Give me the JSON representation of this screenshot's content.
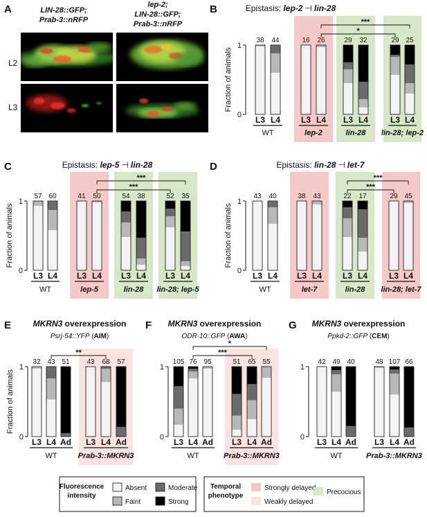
{
  "colors": {
    "absent": "#f3f3f3",
    "faint": "#b8b8b8",
    "moderate": "#6b6b6b",
    "strong": "#000000",
    "strongly_delayed": "#f6c9c9",
    "weakly_delayed": "#fbe3e1",
    "precocious": "#d6e8c8",
    "bar_outline": "#222222"
  },
  "panel_a": {
    "letter": "A",
    "col1_title": [
      "LIN-28::GFP;",
      "Prab-3::nRFP"
    ],
    "col2_title": [
      "lep-2;",
      "LIN-28::GFP;",
      "Prab-3::nRFP"
    ],
    "row_labels": [
      "L2",
      "L3"
    ]
  },
  "legend": {
    "fluor_title": [
      "Fluorescence",
      "intensity"
    ],
    "fluor_items": [
      "Absent",
      "Moderate",
      "Faint",
      "Strong"
    ],
    "temporal_title": [
      "Temporal",
      "phenotype"
    ],
    "temporal_items": [
      "Strongly delayed",
      "Precocious",
      "Weakly delayed"
    ]
  },
  "chart_data": [
    {
      "type": "bar",
      "panel": "B",
      "title_parts": [
        "Epistasis: ",
        "lep-2",
        "lin-28"
      ],
      "ylabel": "Fraction of animals",
      "ylim": [
        0,
        1
      ],
      "yticks": [
        "0",
        "1"
      ],
      "categories": [
        "L3",
        "L4",
        "L3",
        "L4",
        "L3",
        "L4",
        "L3",
        "L4"
      ],
      "n": [
        38,
        44,
        16,
        26,
        29,
        32,
        29,
        25
      ],
      "groups": [
        {
          "label": "WT",
          "shade": "none"
        },
        {
          "label": "lep-2",
          "shade": "strongly_delayed"
        },
        {
          "label": "lin-28",
          "shade": "precocious"
        },
        {
          "label": "lin-28; lep-2",
          "shade": "precocious"
        }
      ],
      "series": [
        {
          "name": "Absent",
          "values": [
            0.98,
            0.6,
            1.0,
            0.97,
            0.45,
            0.1,
            0.57,
            0.3
          ]
        },
        {
          "name": "Faint",
          "values": [
            0.02,
            0.28,
            0.0,
            0.03,
            0.2,
            0.12,
            0.26,
            0.15
          ]
        },
        {
          "name": "Moderate",
          "values": [
            0,
            0.12,
            0,
            0,
            0.1,
            0.25,
            0.03,
            0.27
          ]
        },
        {
          "name": "Strong",
          "values": [
            0,
            0,
            0,
            0,
            0.25,
            0.53,
            0.14,
            0.28
          ]
        }
      ],
      "significance": [
        {
          "from": 3,
          "to": 7,
          "label": "***"
        },
        {
          "from": 3,
          "to": 6,
          "label": "*"
        }
      ]
    },
    {
      "type": "bar",
      "panel": "C",
      "title_parts": [
        "Epistasis: ",
        "lep-5",
        "lin-28"
      ],
      "ylabel": "Fraction of animals",
      "ylim": [
        0,
        1
      ],
      "yticks": [
        "0",
        "1"
      ],
      "categories": [
        "L3",
        "L4",
        "L3",
        "L4",
        "L3",
        "L4",
        "L3",
        "L4"
      ],
      "n": [
        57,
        60,
        41,
        50,
        54,
        38,
        52,
        35
      ],
      "groups": [
        {
          "label": "WT",
          "shade": "none"
        },
        {
          "label": "lep-5",
          "shade": "strongly_delayed"
        },
        {
          "label": "lin-28",
          "shade": "precocious"
        },
        {
          "label": "lin-28; lep-5",
          "shade": "precocious"
        }
      ],
      "series": [
        {
          "name": "Absent",
          "values": [
            0.93,
            0.58,
            1.0,
            0.98,
            0.48,
            0.08,
            0.62,
            0.06
          ]
        },
        {
          "name": "Faint",
          "values": [
            0.07,
            0.29,
            0.0,
            0.02,
            0.21,
            0.09,
            0.16,
            0.07
          ]
        },
        {
          "name": "Moderate",
          "values": [
            0,
            0.13,
            0,
            0,
            0.16,
            0.3,
            0.11,
            0.43
          ]
        },
        {
          "name": "Strong",
          "values": [
            0,
            0,
            0,
            0,
            0.15,
            0.53,
            0.11,
            0.44
          ]
        }
      ],
      "significance": [
        {
          "from": 3,
          "to": 7,
          "label": "***"
        },
        {
          "from": 3,
          "to": 6,
          "label": "***"
        }
      ]
    },
    {
      "type": "bar",
      "panel": "D",
      "title_parts": [
        "Epistasis: ",
        "lin-28",
        "let-7"
      ],
      "ylabel": "Fraction of animals",
      "ylim": [
        0,
        1
      ],
      "yticks": [
        "0",
        "1"
      ],
      "categories": [
        "L3",
        "L4",
        "L3",
        "L4",
        "L3",
        "L4",
        "L3",
        "L4"
      ],
      "n": [
        43,
        40,
        38,
        43,
        22,
        17,
        29,
        45
      ],
      "groups": [
        {
          "label": "WT",
          "shade": "none"
        },
        {
          "label": "let-7",
          "shade": "strongly_delayed"
        },
        {
          "label": "lin-28",
          "shade": "precocious"
        },
        {
          "label": "lin-28; let-7",
          "shade": "strongly_delayed"
        }
      ],
      "series": [
        {
          "name": "Absent",
          "values": [
            1.0,
            0.67,
            1.0,
            0.95,
            0.48,
            0.27,
            1.0,
            0.97
          ]
        },
        {
          "name": "Faint",
          "values": [
            0,
            0.24,
            0,
            0.05,
            0.27,
            0.2,
            0,
            0.03
          ]
        },
        {
          "name": "Moderate",
          "values": [
            0,
            0.09,
            0,
            0,
            0.16,
            0.41,
            0,
            0
          ]
        },
        {
          "name": "Strong",
          "values": [
            0,
            0,
            0,
            0,
            0.09,
            0.12,
            0,
            0
          ]
        }
      ],
      "significance": [
        {
          "from": 4,
          "to": 7,
          "label": "***"
        },
        {
          "from": 4,
          "to": 6,
          "label": "***"
        }
      ]
    },
    {
      "type": "bar",
      "panel": "E",
      "title_parts": [
        "MKRN3",
        " overexpression"
      ],
      "subtitle_parts": [
        "Psrj-54::YFP",
        " (",
        "AIM",
        ")"
      ],
      "ylabel": "Fraction of animals",
      "ylim": [
        0,
        1
      ],
      "yticks": [
        "0",
        "1"
      ],
      "categories": [
        "L3",
        "L4",
        "Ad",
        "L3",
        "L4",
        "Ad"
      ],
      "n": [
        32,
        43,
        51,
        43,
        68,
        57
      ],
      "groups": [
        {
          "label": "WT",
          "shade": "none"
        },
        {
          "label": "Prab-3::MKRN3",
          "shade": "weakly_delayed"
        }
      ],
      "series": [
        {
          "name": "Absent",
          "values": [
            0.97,
            0.53,
            0.0,
            1.0,
            0.78,
            0.0
          ]
        },
        {
          "name": "Faint",
          "values": [
            0.03,
            0.3,
            0.0,
            0.0,
            0.19,
            0.0
          ]
        },
        {
          "name": "Moderate",
          "values": [
            0,
            0.17,
            0.05,
            0,
            0.03,
            0.14
          ]
        },
        {
          "name": "Strong",
          "values": [
            0,
            0,
            0.95,
            0,
            0,
            0.86
          ]
        }
      ],
      "significance": [
        {
          "from": 1,
          "to": 4,
          "label": "**"
        }
      ]
    },
    {
      "type": "bar",
      "panel": "F",
      "title_parts": [
        "MKRN3",
        " overexpression"
      ],
      "subtitle_parts": [
        "ODR-10::GFP",
        " (",
        "AWA",
        ")"
      ],
      "ylabel": "",
      "ylim": [
        0,
        1
      ],
      "yticks": [
        "0",
        "1"
      ],
      "categories": [
        "L3",
        "L4",
        "Ad",
        "L3",
        "L4",
        "Ad"
      ],
      "n": [
        105,
        76,
        95,
        51,
        65,
        55
      ],
      "groups": [
        {
          "label": "WT",
          "shade": "none"
        },
        {
          "label": "Prab-3::MKRN3",
          "shade": "weakly_delayed"
        }
      ],
      "series": [
        {
          "name": "Absent",
          "values": [
            0.17,
            0.83,
            0.97,
            0.1,
            0.25,
            0.84
          ]
        },
        {
          "name": "Faint",
          "values": [
            0.23,
            0.1,
            0.03,
            0.2,
            0.27,
            0.16
          ]
        },
        {
          "name": "Moderate",
          "values": [
            0.32,
            0.04,
            0,
            0.31,
            0.23,
            0
          ]
        },
        {
          "name": "Strong",
          "values": [
            0.28,
            0.03,
            0,
            0.39,
            0.25,
            0
          ]
        }
      ],
      "significance": [
        {
          "from": 1,
          "to": 5,
          "label": "*"
        },
        {
          "from": 1,
          "to": 4,
          "label": "***"
        }
      ]
    },
    {
      "type": "bar",
      "panel": "G",
      "title_parts": [
        "MKRN3",
        " overexpression"
      ],
      "subtitle_parts": [
        "Ppkd-2::GFP",
        " (",
        "CEM",
        ")"
      ],
      "ylabel": "",
      "ylim": [
        0,
        1
      ],
      "yticks": [
        "0",
        "1"
      ],
      "categories": [
        "L3",
        "L4",
        "Ad",
        "L3",
        "L4",
        "Ad"
      ],
      "n": [
        42,
        49,
        40,
        48,
        107,
        66
      ],
      "groups": [
        {
          "label": "WT",
          "shade": "none"
        },
        {
          "label": "Prab-3::MKRN3",
          "shade": "none"
        }
      ],
      "series": [
        {
          "name": "Absent",
          "values": [
            1.0,
            0.64,
            0.0,
            0.98,
            0.6,
            0.0
          ]
        },
        {
          "name": "Faint",
          "values": [
            0,
            0.25,
            0.0,
            0.02,
            0.3,
            0.0
          ]
        },
        {
          "name": "Moderate",
          "values": [
            0,
            0.06,
            0.15,
            0,
            0.06,
            0.13
          ]
        },
        {
          "name": "Strong",
          "values": [
            0,
            0.05,
            0.85,
            0,
            0.04,
            0.87
          ]
        }
      ],
      "significance": []
    }
  ]
}
